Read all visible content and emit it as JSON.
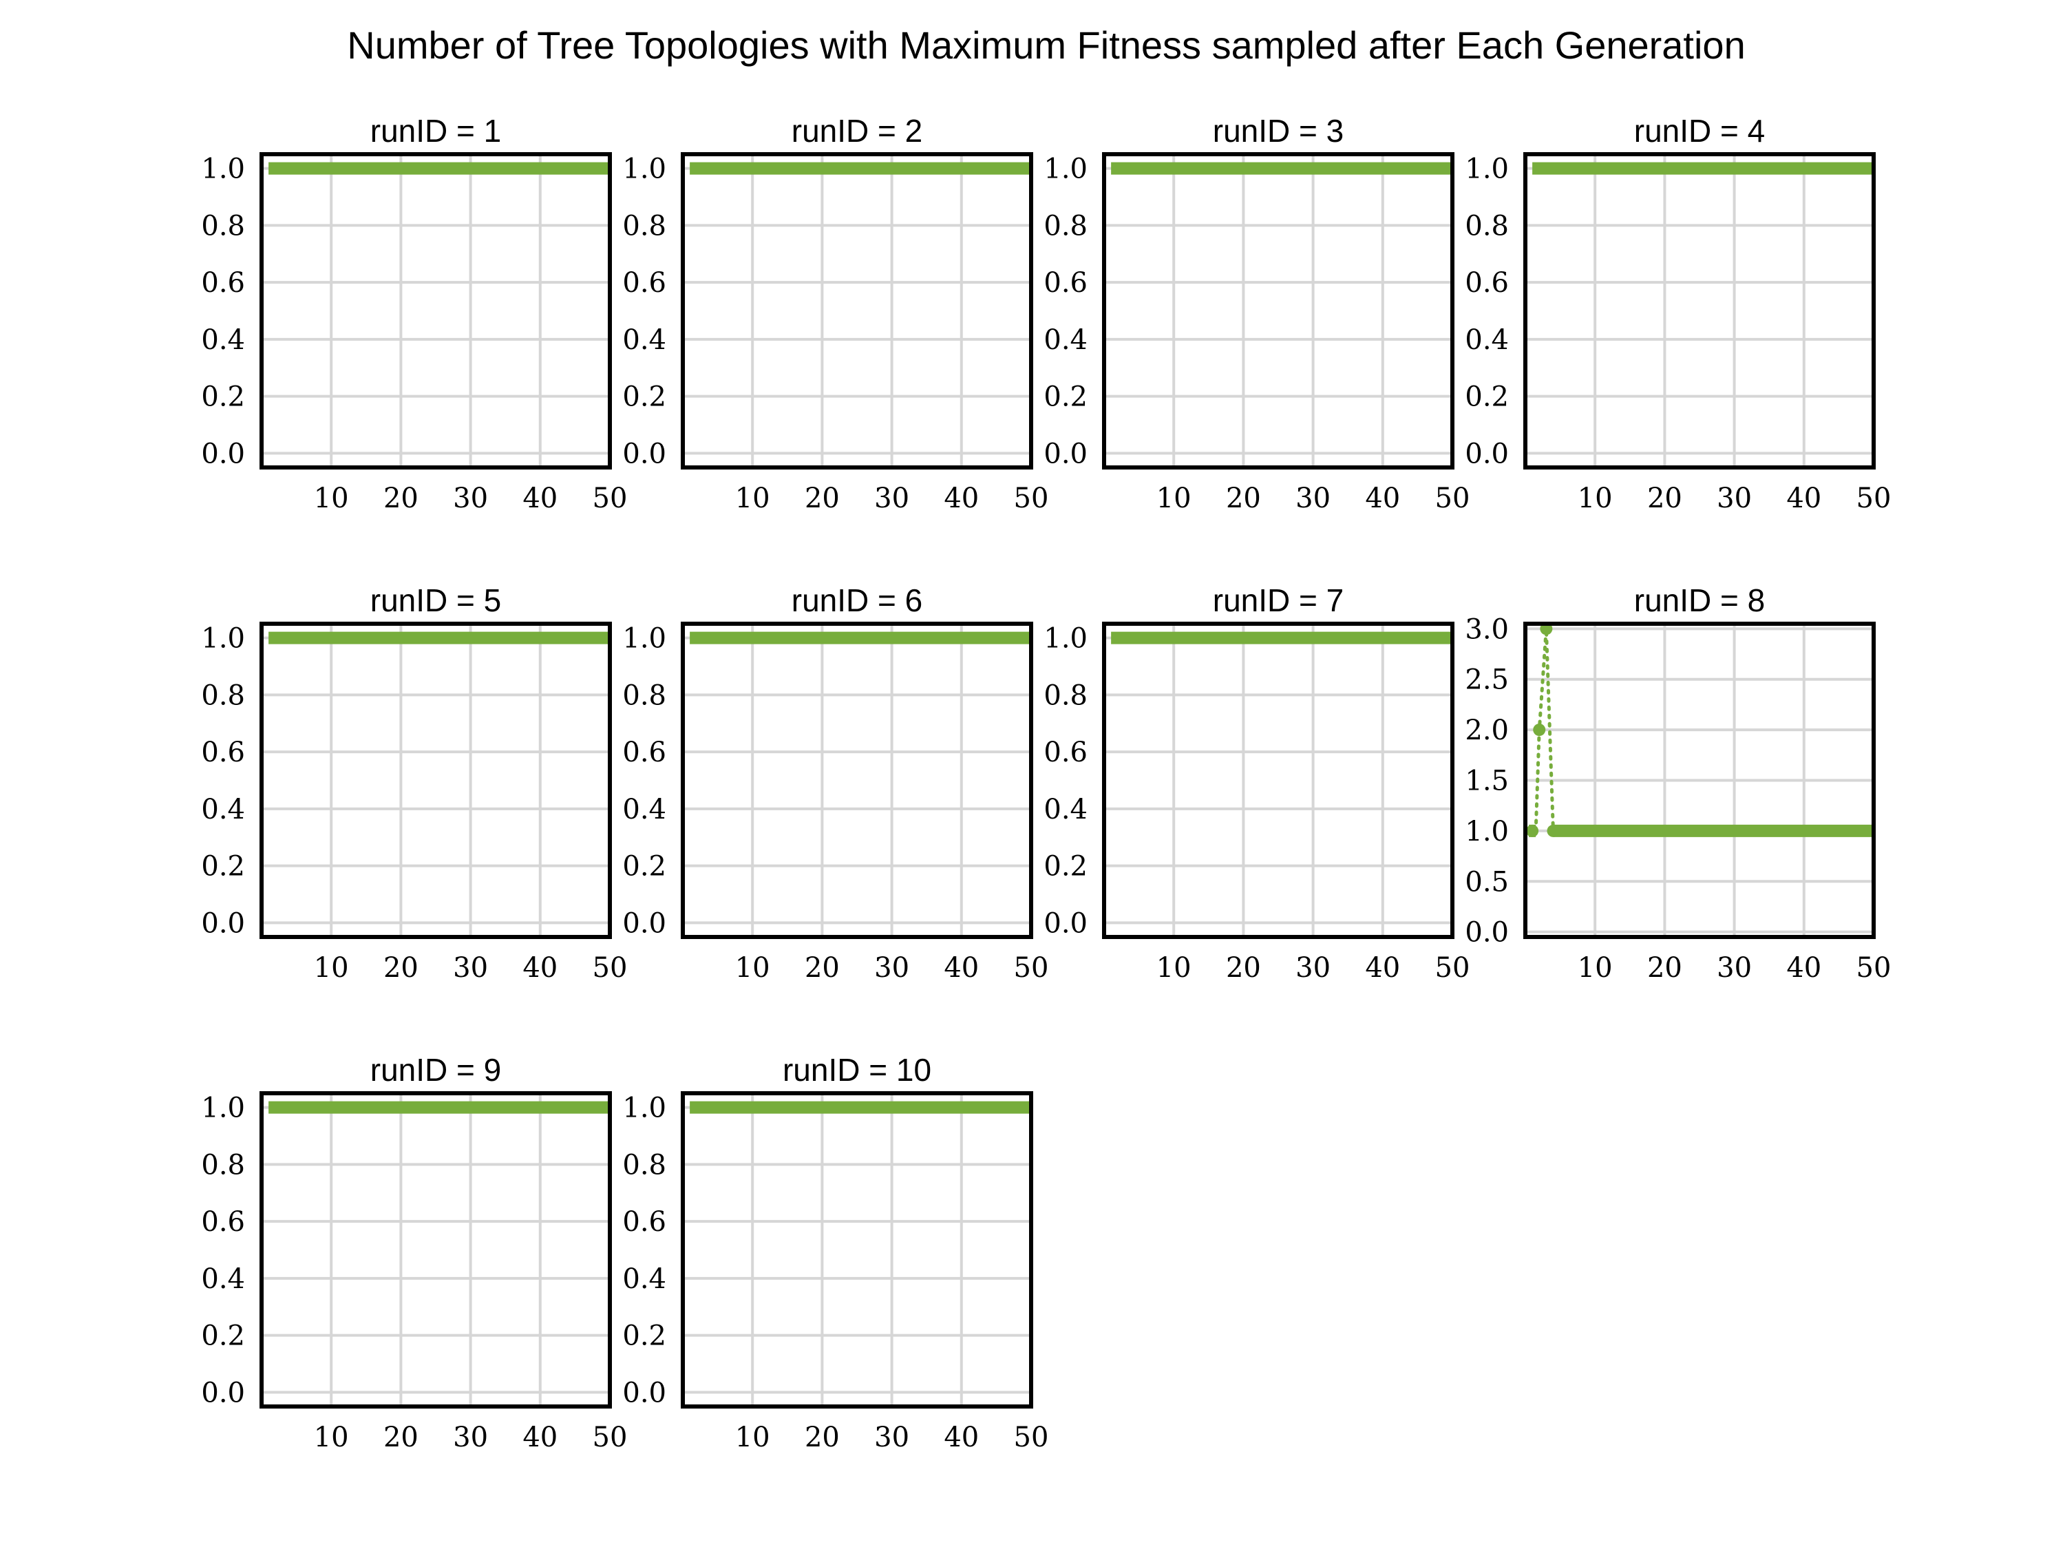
{
  "figure": {
    "title": "Number of Tree Topologies with Maximum Fitness sampled after Each Generation"
  },
  "style": {
    "series_color": "#77ad3c",
    "grid_color": "#d6d6d6",
    "frame_color": "#000000"
  },
  "chart_data": [
    {
      "type": "line",
      "title": "runID = 1",
      "xlim": [
        0,
        50
      ],
      "ylim": [
        -0.05,
        1.05
      ],
      "xticks": [
        10,
        20,
        30,
        40,
        50
      ],
      "yticks": [
        0.0,
        0.2,
        0.4,
        0.6,
        0.8,
        1.0
      ],
      "grid": true,
      "segments": [
        {
          "style": "solid",
          "x": [
            1,
            50
          ],
          "y": [
            1,
            1
          ]
        }
      ]
    },
    {
      "type": "line",
      "title": "runID = 2",
      "xlim": [
        0,
        50
      ],
      "ylim": [
        -0.05,
        1.05
      ],
      "xticks": [
        10,
        20,
        30,
        40,
        50
      ],
      "yticks": [
        0.0,
        0.2,
        0.4,
        0.6,
        0.8,
        1.0
      ],
      "grid": true,
      "segments": [
        {
          "style": "solid",
          "x": [
            1,
            50
          ],
          "y": [
            1,
            1
          ]
        }
      ]
    },
    {
      "type": "line",
      "title": "runID = 3",
      "xlim": [
        0,
        50
      ],
      "ylim": [
        -0.05,
        1.05
      ],
      "xticks": [
        10,
        20,
        30,
        40,
        50
      ],
      "yticks": [
        0.0,
        0.2,
        0.4,
        0.6,
        0.8,
        1.0
      ],
      "grid": true,
      "segments": [
        {
          "style": "solid",
          "x": [
            1,
            50
          ],
          "y": [
            1,
            1
          ]
        }
      ]
    },
    {
      "type": "line",
      "title": "runID = 4",
      "xlim": [
        0,
        50
      ],
      "ylim": [
        -0.05,
        1.05
      ],
      "xticks": [
        10,
        20,
        30,
        40,
        50
      ],
      "yticks": [
        0.0,
        0.2,
        0.4,
        0.6,
        0.8,
        1.0
      ],
      "grid": true,
      "segments": [
        {
          "style": "solid",
          "x": [
            1,
            50
          ],
          "y": [
            1,
            1
          ]
        }
      ]
    },
    {
      "type": "line",
      "title": "runID = 5",
      "xlim": [
        0,
        50
      ],
      "ylim": [
        -0.05,
        1.05
      ],
      "xticks": [
        10,
        20,
        30,
        40,
        50
      ],
      "yticks": [
        0.0,
        0.2,
        0.4,
        0.6,
        0.8,
        1.0
      ],
      "grid": true,
      "segments": [
        {
          "style": "solid",
          "x": [
            1,
            50
          ],
          "y": [
            1,
            1
          ]
        }
      ]
    },
    {
      "type": "line",
      "title": "runID = 6",
      "xlim": [
        0,
        50
      ],
      "ylim": [
        -0.05,
        1.05
      ],
      "xticks": [
        10,
        20,
        30,
        40,
        50
      ],
      "yticks": [
        0.0,
        0.2,
        0.4,
        0.6,
        0.8,
        1.0
      ],
      "grid": true,
      "segments": [
        {
          "style": "solid",
          "x": [
            1,
            50
          ],
          "y": [
            1,
            1
          ]
        }
      ]
    },
    {
      "type": "line",
      "title": "runID = 7",
      "xlim": [
        0,
        50
      ],
      "ylim": [
        -0.05,
        1.05
      ],
      "xticks": [
        10,
        20,
        30,
        40,
        50
      ],
      "yticks": [
        0.0,
        0.2,
        0.4,
        0.6,
        0.8,
        1.0
      ],
      "grid": true,
      "segments": [
        {
          "style": "solid",
          "x": [
            1,
            50
          ],
          "y": [
            1,
            1
          ]
        }
      ]
    },
    {
      "type": "line",
      "title": "runID = 8",
      "xlim": [
        0,
        50
      ],
      "ylim": [
        -0.05,
        3.05
      ],
      "xticks": [
        10,
        20,
        30,
        40,
        50
      ],
      "yticks": [
        0.0,
        0.5,
        1.0,
        1.5,
        2.0,
        2.5,
        3.0
      ],
      "grid": true,
      "segments": [
        {
          "style": "solid",
          "x": [
            0.5,
            1.5
          ],
          "y": [
            1,
            1
          ]
        },
        {
          "style": "dotted",
          "x": [
            1.5,
            2,
            3,
            4
          ],
          "y": [
            1,
            2,
            3,
            1
          ]
        },
        {
          "style": "solid",
          "x": [
            4,
            50
          ],
          "y": [
            1,
            1
          ]
        }
      ],
      "markers": {
        "x": [
          1,
          2,
          3,
          4
        ],
        "y": [
          1,
          2,
          3,
          1
        ]
      }
    },
    {
      "type": "line",
      "title": "runID = 9",
      "xlim": [
        0,
        50
      ],
      "ylim": [
        -0.05,
        1.05
      ],
      "xticks": [
        10,
        20,
        30,
        40,
        50
      ],
      "yticks": [
        0.0,
        0.2,
        0.4,
        0.6,
        0.8,
        1.0
      ],
      "grid": true,
      "segments": [
        {
          "style": "solid",
          "x": [
            1,
            50
          ],
          "y": [
            1,
            1
          ]
        }
      ]
    },
    {
      "type": "line",
      "title": "runID = 10",
      "xlim": [
        0,
        50
      ],
      "ylim": [
        -0.05,
        1.05
      ],
      "xticks": [
        10,
        20,
        30,
        40,
        50
      ],
      "yticks": [
        0.0,
        0.2,
        0.4,
        0.6,
        0.8,
        1.0
      ],
      "grid": true,
      "segments": [
        {
          "style": "solid",
          "x": [
            1,
            50
          ],
          "y": [
            1,
            1
          ]
        }
      ]
    }
  ]
}
